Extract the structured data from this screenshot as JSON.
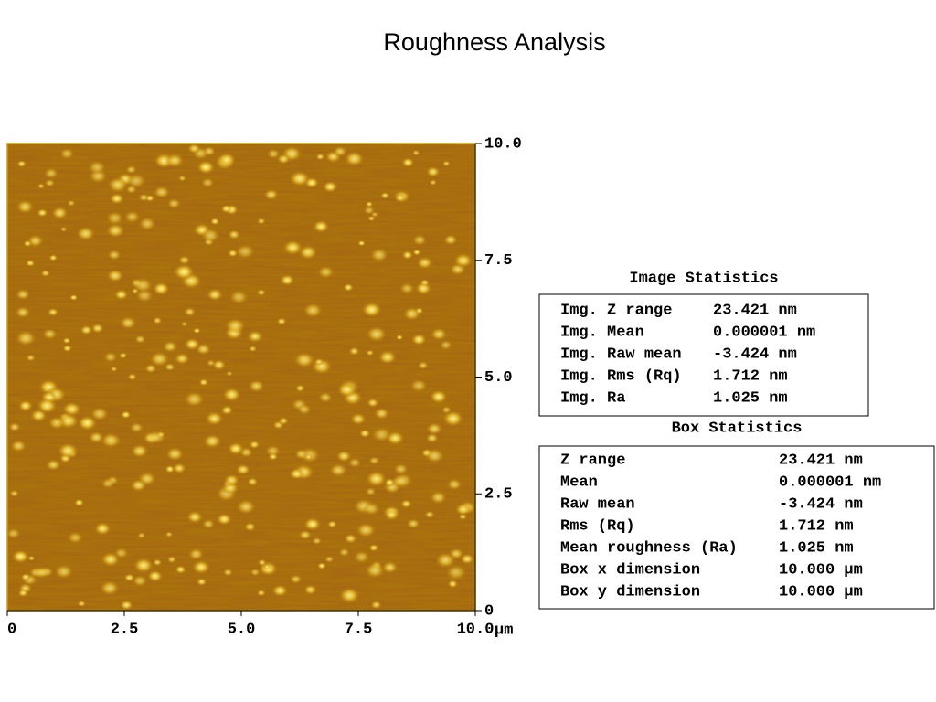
{
  "header": {
    "title": "Roughness Analysis"
  },
  "image": {
    "y_ticks": [
      "10.0",
      "7.5",
      "5.0",
      "2.5",
      "0"
    ],
    "x_ticks": [
      "0",
      "2.5",
      "5.0",
      "7.5",
      "10.0"
    ],
    "x_unit": "µm"
  },
  "image_statistics": {
    "title": "Image Statistics",
    "rows": [
      [
        "Img. Z range",
        "23.421 nm"
      ],
      [
        "Img. Mean",
        "0.000001 nm"
      ],
      [
        "Img. Raw mean",
        "-3.424 nm"
      ],
      [
        "Img. Rms (Rq)",
        "1.712 nm"
      ],
      [
        "Img. Ra",
        "1.025 nm"
      ]
    ]
  },
  "box_statistics": {
    "title": "Box Statistics",
    "rows": [
      [
        "Z range",
        "23.421 nm"
      ],
      [
        "Mean",
        "0.000001 nm"
      ],
      [
        "Raw mean",
        "-3.424 nm"
      ],
      [
        "Rms (Rq)",
        "1.712 nm"
      ],
      [
        "Mean roughness (Ra)",
        "1.025 nm"
      ],
      [
        "Box x dimension",
        "10.000 µm"
      ],
      [
        "Box y dimension",
        "10.000 µm"
      ]
    ]
  }
}
